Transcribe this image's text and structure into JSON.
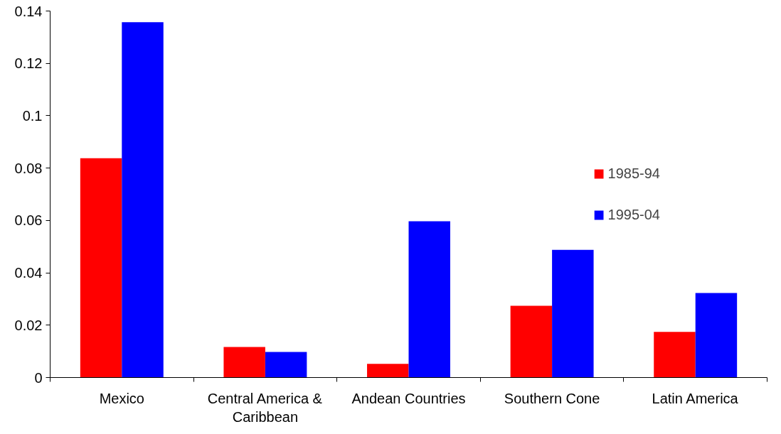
{
  "chart_data": {
    "type": "bar",
    "categories": [
      "Mexico",
      "Central America & Caribbean",
      "Andean Countries",
      "Southern Cone",
      "Latin America"
    ],
    "series": [
      {
        "name": "1985-94",
        "color": "#ff0000",
        "values": [
          0.0838,
          0.0117,
          0.0052,
          0.0274,
          0.0174
        ]
      },
      {
        "name": "1995-04",
        "color": "#0000ff",
        "values": [
          0.1357,
          0.0098,
          0.0597,
          0.0488,
          0.0323
        ]
      }
    ],
    "ylim": [
      0,
      0.14
    ],
    "yticks": [
      0,
      0.02,
      0.04,
      0.06,
      0.08,
      0.1,
      0.12,
      0.14
    ],
    "grid": false,
    "legend": "right"
  }
}
